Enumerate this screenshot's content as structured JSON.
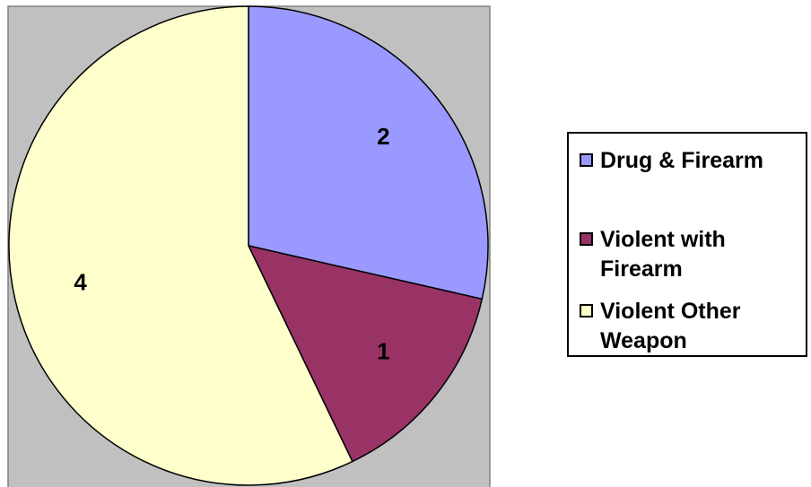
{
  "chart_data": {
    "type": "pie",
    "categories": [
      "Drug & Firearm",
      "Violent with Firearm",
      "Violent Other Weapon"
    ],
    "values": [
      2,
      1,
      4
    ],
    "colors": [
      "#9999ff",
      "#993366",
      "#ffffcc"
    ]
  }
}
